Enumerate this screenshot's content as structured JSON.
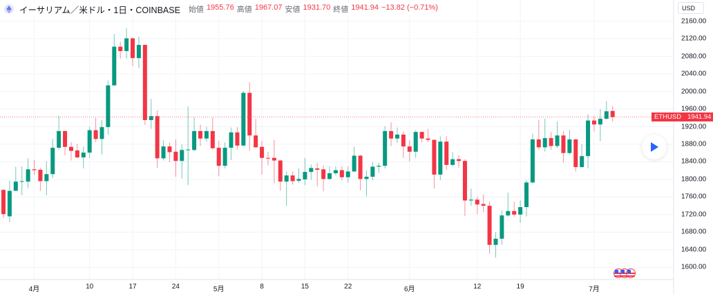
{
  "header": {
    "title": "イーサリアム／米ドル・1日・COINBASE",
    "open_label": "始値",
    "open": "1955.76",
    "high_label": "高値",
    "high": "1967.07",
    "low_label": "安値",
    "low": "1931.70",
    "close_label": "終値",
    "close": "1941.94",
    "change": "−13.82 (−0.71%)"
  },
  "currency_button": "USD",
  "price_tag": {
    "symbol": "ETHUSD",
    "price": "1941.94"
  },
  "colors": {
    "up": "#089981",
    "down": "#f23645",
    "accent": "#2962ff"
  },
  "chart_data": {
    "type": "candlestick",
    "title": "イーサリアム／米ドル・1日・COINBASE",
    "ylim": [
      1560,
      2200
    ],
    "y_ticks": [
      "2160.00",
      "2120.00",
      "2080.00",
      "2040.00",
      "2000.00",
      "1960.00",
      "1920.00",
      "1880.00",
      "1840.00",
      "1800.00",
      "1760.00",
      "1720.00",
      "1680.00",
      "1640.00",
      "1600.00"
    ],
    "x_ticks": [
      {
        "label": "4月",
        "index": 5
      },
      {
        "label": "10",
        "index": 14
      },
      {
        "label": "17",
        "index": 21
      },
      {
        "label": "24",
        "index": 28
      },
      {
        "label": "5月",
        "index": 35
      },
      {
        "label": "8",
        "index": 42
      },
      {
        "label": "15",
        "index": 49
      },
      {
        "label": "22",
        "index": 56
      },
      {
        "label": "6月",
        "index": 66
      },
      {
        "label": "12",
        "index": 77
      },
      {
        "label": "19",
        "index": 84
      },
      {
        "label": "7月",
        "index": 96
      }
    ],
    "last_price": 1941.94,
    "ohlc_fields": [
      "open",
      "high",
      "low",
      "close"
    ],
    "ohlc": [
      [
        1776,
        1778,
        1712,
        1721
      ],
      [
        1716,
        1797,
        1703,
        1774
      ],
      [
        1774,
        1829,
        1774,
        1795
      ],
      [
        1795,
        1830,
        1764,
        1796
      ],
      [
        1795,
        1848,
        1780,
        1823
      ],
      [
        1823,
        1844,
        1810,
        1821
      ],
      [
        1822,
        1826,
        1774,
        1796
      ],
      [
        1796,
        1841,
        1764,
        1812
      ],
      [
        1812,
        1892,
        1803,
        1872
      ],
      [
        1872,
        1945,
        1867,
        1910
      ],
      [
        1910,
        1911,
        1855,
        1874
      ],
      [
        1874,
        1885,
        1843,
        1865
      ],
      [
        1866,
        1881,
        1849,
        1850
      ],
      [
        1850,
        1875,
        1825,
        1861
      ],
      [
        1861,
        1920,
        1849,
        1912
      ],
      [
        1912,
        1940,
        1885,
        1892
      ],
      [
        1892,
        1935,
        1857,
        1919
      ],
      [
        1919,
        2025,
        1902,
        2014
      ],
      [
        2014,
        2131,
        2013,
        2102
      ],
      [
        2102,
        2113,
        2075,
        2092
      ],
      [
        2092,
        2144,
        2075,
        2121
      ],
      [
        2121,
        2123,
        2058,
        2076
      ],
      [
        2076,
        2125,
        2053,
        2106
      ],
      [
        2106,
        2107,
        1924,
        1935
      ],
      [
        1935,
        1983,
        1915,
        1944
      ],
      [
        1944,
        1957,
        1826,
        1848
      ],
      [
        1848,
        1889,
        1843,
        1875
      ],
      [
        1875,
        1884,
        1839,
        1862
      ],
      [
        1863,
        1891,
        1806,
        1842
      ],
      [
        1842,
        1880,
        1802,
        1867
      ],
      [
        1867,
        1966,
        1787,
        1868
      ],
      [
        1867,
        1941,
        1864,
        1910
      ],
      [
        1910,
        1925,
        1876,
        1893
      ],
      [
        1893,
        1920,
        1886,
        1910
      ],
      [
        1910,
        1941,
        1868,
        1871
      ],
      [
        1872,
        1888,
        1807,
        1831
      ],
      [
        1831,
        1884,
        1825,
        1872
      ],
      [
        1872,
        1918,
        1844,
        1907
      ],
      [
        1907,
        1919,
        1868,
        1877
      ],
      [
        1877,
        2001,
        1876,
        1997
      ],
      [
        1997,
        2021,
        1865,
        1900
      ],
      [
        1900,
        1938,
        1872,
        1873
      ],
      [
        1874,
        1888,
        1811,
        1849
      ],
      [
        1849,
        1863,
        1832,
        1848
      ],
      [
        1849,
        1890,
        1791,
        1843
      ],
      [
        1843,
        1845,
        1774,
        1795
      ],
      [
        1795,
        1818,
        1740,
        1809
      ],
      [
        1809,
        1818,
        1788,
        1796
      ],
      [
        1797,
        1825,
        1792,
        1801
      ],
      [
        1800,
        1849,
        1787,
        1817
      ],
      [
        1817,
        1834,
        1799,
        1826
      ],
      [
        1825,
        1838,
        1784,
        1822
      ],
      [
        1823,
        1832,
        1773,
        1801
      ],
      [
        1801,
        1830,
        1799,
        1814
      ],
      [
        1814,
        1830,
        1809,
        1821
      ],
      [
        1821,
        1830,
        1798,
        1805
      ],
      [
        1805,
        1830,
        1793,
        1818
      ],
      [
        1818,
        1874,
        1817,
        1854
      ],
      [
        1854,
        1856,
        1775,
        1801
      ],
      [
        1801,
        1820,
        1761,
        1806
      ],
      [
        1806,
        1839,
        1798,
        1829
      ],
      [
        1829,
        1838,
        1815,
        1831
      ],
      [
        1831,
        1921,
        1825,
        1910
      ],
      [
        1910,
        1930,
        1876,
        1893
      ],
      [
        1893,
        1918,
        1883,
        1902
      ],
      [
        1902,
        1909,
        1849,
        1875
      ],
      [
        1875,
        1889,
        1841,
        1863
      ],
      [
        1863,
        1912,
        1849,
        1908
      ],
      [
        1908,
        1909,
        1884,
        1893
      ],
      [
        1893,
        1915,
        1885,
        1890
      ],
      [
        1890,
        1891,
        1779,
        1811
      ],
      [
        1811,
        1898,
        1798,
        1886
      ],
      [
        1886,
        1899,
        1822,
        1833
      ],
      [
        1833,
        1862,
        1830,
        1846
      ],
      [
        1846,
        1855,
        1827,
        1842
      ],
      [
        1842,
        1846,
        1717,
        1752
      ],
      [
        1752,
        1779,
        1740,
        1754
      ],
      [
        1754,
        1761,
        1721,
        1743
      ],
      [
        1744,
        1766,
        1725,
        1740
      ],
      [
        1740,
        1750,
        1631,
        1651
      ],
      [
        1651,
        1680,
        1622,
        1665
      ],
      [
        1665,
        1729,
        1651,
        1718
      ],
      [
        1718,
        1770,
        1715,
        1728
      ],
      [
        1728,
        1749,
        1715,
        1720
      ],
      [
        1720,
        1752,
        1701,
        1737
      ],
      [
        1737,
        1798,
        1716,
        1793
      ],
      [
        1793,
        1904,
        1791,
        1891
      ],
      [
        1891,
        1935,
        1868,
        1873
      ],
      [
        1873,
        1938,
        1863,
        1894
      ],
      [
        1894,
        1908,
        1867,
        1876
      ],
      [
        1876,
        1932,
        1871,
        1900
      ],
      [
        1900,
        1910,
        1838,
        1860
      ],
      [
        1860,
        1913,
        1856,
        1891
      ],
      [
        1891,
        1892,
        1818,
        1828
      ],
      [
        1828,
        1880,
        1827,
        1853
      ],
      [
        1853,
        1948,
        1825,
        1934
      ],
      [
        1934,
        1944,
        1909,
        1925
      ],
      [
        1925,
        1960,
        1887,
        1938
      ],
      [
        1938,
        1978,
        1936,
        1955
      ],
      [
        1955.76,
        1967.07,
        1931.7,
        1941.94
      ]
    ]
  }
}
